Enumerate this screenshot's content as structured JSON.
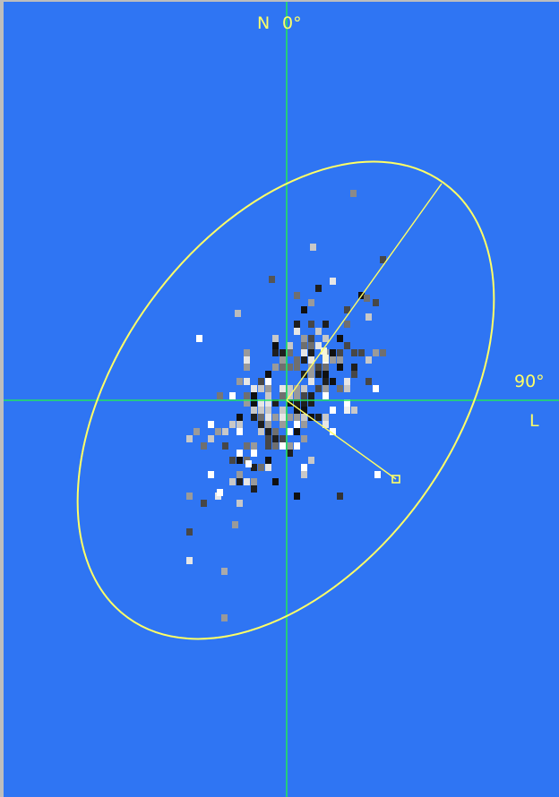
{
  "labels": {
    "north": "N",
    "zero": "0°",
    "ninety": "90°",
    "l": "L"
  },
  "colors": {
    "background": "#2f75f3",
    "axis": "#22e35f",
    "ellipse": "#ffff66",
    "label": "#ffff66"
  }
}
